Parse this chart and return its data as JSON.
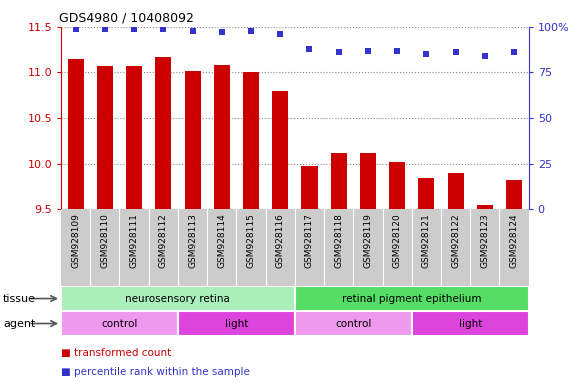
{
  "title": "GDS4980 / 10408092",
  "samples": [
    "GSM928109",
    "GSM928110",
    "GSM928111",
    "GSM928112",
    "GSM928113",
    "GSM928114",
    "GSM928115",
    "GSM928116",
    "GSM928117",
    "GSM928118",
    "GSM928119",
    "GSM928120",
    "GSM928121",
    "GSM928122",
    "GSM928123",
    "GSM928124"
  ],
  "transformed_count": [
    11.15,
    11.07,
    11.07,
    11.17,
    11.02,
    11.08,
    11.0,
    10.8,
    9.98,
    10.12,
    10.12,
    10.02,
    9.84,
    9.9,
    9.55,
    9.82
  ],
  "percentile_rank": [
    99,
    99,
    99,
    99,
    98,
    97,
    98,
    96,
    88,
    86,
    87,
    87,
    85,
    86,
    84,
    86
  ],
  "bar_bottom": 9.5,
  "ylim_left": [
    9.5,
    11.5
  ],
  "ylim_right": [
    0,
    100
  ],
  "yticks_left": [
    9.5,
    10.0,
    10.5,
    11.0,
    11.5
  ],
  "yticks_right": [
    0,
    25,
    50,
    75,
    100
  ],
  "bar_color": "#cc0000",
  "dot_color": "#3333cc",
  "tissue_groups": [
    {
      "label": "neurosensory retina",
      "start": 0,
      "end": 8,
      "color": "#aaeebb"
    },
    {
      "label": "retinal pigment epithelium",
      "start": 8,
      "end": 16,
      "color": "#55dd66"
    }
  ],
  "agent_groups": [
    {
      "label": "control",
      "start": 0,
      "end": 4,
      "color": "#ee99ee"
    },
    {
      "label": "light",
      "start": 4,
      "end": 8,
      "color": "#dd44dd"
    },
    {
      "label": "control",
      "start": 8,
      "end": 12,
      "color": "#ee99ee"
    },
    {
      "label": "light",
      "start": 12,
      "end": 16,
      "color": "#dd44dd"
    }
  ],
  "legend_items": [
    {
      "label": "transformed count",
      "color": "#cc0000"
    },
    {
      "label": "percentile rank within the sample",
      "color": "#3333cc"
    }
  ],
  "left_axis_color": "#cc0000",
  "right_axis_color": "#3333cc",
  "xticklabel_bg": "#cccccc",
  "tissue_label": "tissue",
  "agent_label": "agent",
  "grid_color": "#888888",
  "bg_color": "#ffffff"
}
